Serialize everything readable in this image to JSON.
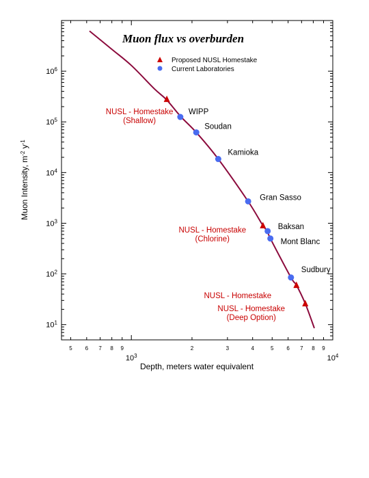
{
  "chart_data": {
    "type": "scatter",
    "title": "Muon flux vs overburden",
    "xlabel": "Depth, meters water equivalent",
    "ylabel": "Muon Intensity, m",
    "ylabel_unit": "-2",
    "ylabel_suffix": " y",
    "ylabel_unit2": "-1",
    "x_scale": "log",
    "y_scale": "log",
    "xlim": [
      450,
      10000
    ],
    "ylim": [
      5,
      10000000
    ],
    "x_major_ticks": [
      {
        "value": 1000,
        "base": "10",
        "exp": "3"
      },
      {
        "value": 10000,
        "base": "10",
        "exp": "4"
      }
    ],
    "x_minor_ticks": [
      {
        "value": 500,
        "label": "5"
      },
      {
        "value": 600,
        "label": "6"
      },
      {
        "value": 700,
        "label": "7"
      },
      {
        "value": 800,
        "label": "8"
      },
      {
        "value": 900,
        "label": "9"
      },
      {
        "value": 2000,
        "label": "2"
      },
      {
        "value": 3000,
        "label": "3"
      },
      {
        "value": 4000,
        "label": "4"
      },
      {
        "value": 5000,
        "label": "5"
      },
      {
        "value": 6000,
        "label": "6"
      },
      {
        "value": 7000,
        "label": "7"
      },
      {
        "value": 8000,
        "label": "8"
      },
      {
        "value": 9000,
        "label": "9"
      }
    ],
    "y_major_ticks": [
      {
        "value": 10,
        "base": "10",
        "exp": "1"
      },
      {
        "value": 100,
        "base": "10",
        "exp": "2"
      },
      {
        "value": 1000,
        "base": "10",
        "exp": "3"
      },
      {
        "value": 10000,
        "base": "10",
        "exp": "4"
      },
      {
        "value": 100000,
        "base": "10",
        "exp": "5"
      },
      {
        "value": 1000000,
        "base": "10",
        "exp": "6"
      }
    ],
    "legend": {
      "position": "top-center",
      "entries": [
        {
          "name": "Proposed NUSL Homestake",
          "marker": "triangle",
          "color": "#cc0000"
        },
        {
          "name": "Current Laboratories",
          "marker": "circle",
          "color": "#4a6cf0"
        }
      ]
    },
    "curve": {
      "color": "#8b0a3c",
      "x": [
        620,
        800,
        1000,
        1300,
        1500,
        1750,
        2100,
        2700,
        3800,
        4500,
        4750,
        4900,
        6200,
        6600,
        7300,
        8100
      ],
      "y": [
        6200000,
        2700000,
        1300000,
        450000,
        270000,
        130000,
        62000,
        18500,
        2700,
        900,
        700,
        500,
        85,
        60,
        26,
        8.5
      ]
    },
    "series": [
      {
        "name": "Current Laboratories",
        "marker": "circle",
        "color": "#4a6cf0",
        "points": [
          {
            "label": "WIPP",
            "x": 1750,
            "y": 125000
          },
          {
            "label": "Soudan",
            "x": 2100,
            "y": 62000
          },
          {
            "label": "Kamioka",
            "x": 2700,
            "y": 18500
          },
          {
            "label": "Gran Sasso",
            "x": 3800,
            "y": 2700
          },
          {
            "label": "Baksan",
            "x": 4750,
            "y": 700
          },
          {
            "label": "Mont Blanc",
            "x": 4900,
            "y": 500
          },
          {
            "label": "Sudbury",
            "x": 6200,
            "y": 85
          }
        ]
      },
      {
        "name": "Proposed NUSL Homestake",
        "marker": "triangle",
        "color": "#cc0000",
        "points": [
          {
            "label": [
              "NUSL - Homestake",
              "(Shallow)"
            ],
            "x": 1500,
            "y": 280000
          },
          {
            "label": [
              "NUSL - Homestake",
              "(Chlorine)"
            ],
            "x": 4500,
            "y": 900
          },
          {
            "label": [
              "NUSL - Homestake"
            ],
            "x": 6600,
            "y": 60
          },
          {
            "label": [
              "NUSL - Homestake",
              "(Deep Option)"
            ],
            "x": 7300,
            "y": 26
          }
        ]
      }
    ]
  }
}
